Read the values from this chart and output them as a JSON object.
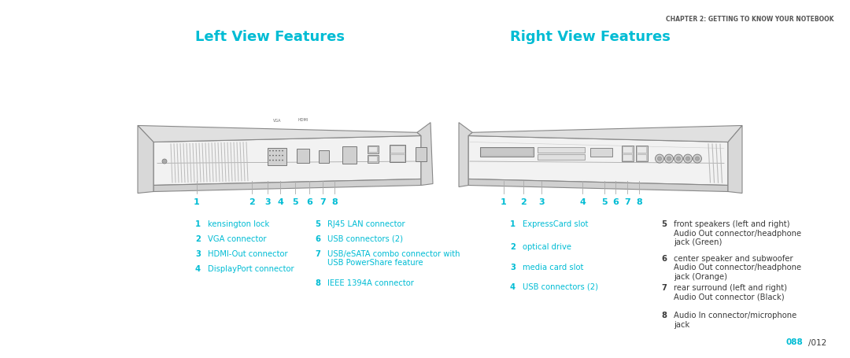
{
  "bg_color": "#ffffff",
  "cyan": "#00bcd4",
  "dark_gray": "#3a3a3a",
  "light_gray": "#888888",
  "title_left": "Left View Features",
  "title_right": "Right View Features",
  "chapter_text": "CHAPTER 2: GETTING TO KNOW YOUR NOTEBOOK",
  "page_num_cyan": "088",
  "page_num_gray": "/012",
  "left_labels_col1": [
    [
      "1",
      "kensington lock"
    ],
    [
      "2",
      "VGA connector"
    ],
    [
      "3",
      "HDMI-Out connector"
    ],
    [
      "4",
      "DisplayPort connector"
    ]
  ],
  "left_labels_col2": [
    [
      "5",
      "RJ45 LAN connector"
    ],
    [
      "6",
      "USB connectors (2)"
    ],
    [
      "7",
      "USB/eSATA combo connector with\nUSB PowerShare feature"
    ],
    [
      "8",
      "IEEE 1394A connector"
    ]
  ],
  "right_labels_col1": [
    [
      "1",
      "ExpressCard slot"
    ],
    [
      "2",
      "optical drive"
    ],
    [
      "3",
      "media card slot"
    ],
    [
      "4",
      "USB connectors (2)"
    ]
  ],
  "right_labels_col2": [
    [
      "5",
      "front speakers (left and right)\nAudio Out connector/headphone\njack (Green)"
    ],
    [
      "6",
      "center speaker and subwoofer\nAudio Out connector/headphone\njack (Orange)"
    ],
    [
      "7",
      "rear surround (left and right)\nAudio Out connector (Black)"
    ],
    [
      "8",
      "Audio In connector/microphone\njack"
    ]
  ]
}
